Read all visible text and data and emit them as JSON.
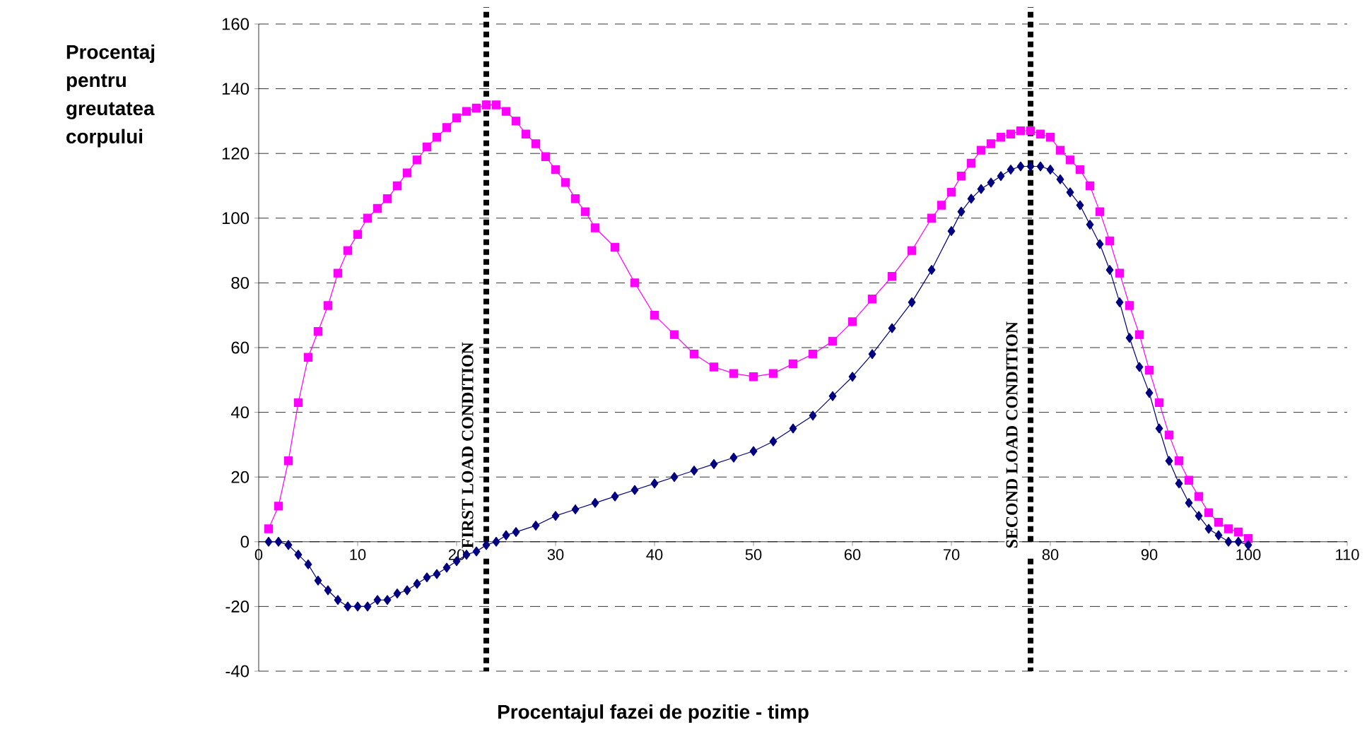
{
  "chart_data": {
    "type": "line",
    "xlabel": "Procentajul fazei de pozitie - timp",
    "ylabel": "Procentaj pentru greutatea corpului",
    "xlim": [
      0,
      110
    ],
    "xticks": [
      0,
      10,
      20,
      30,
      40,
      50,
      60,
      70,
      80,
      90,
      100,
      110
    ],
    "ylim": [
      -40,
      160
    ],
    "yticks": [
      -40,
      -20,
      0,
      20,
      40,
      60,
      80,
      100,
      120,
      140,
      160
    ],
    "grid": "y",
    "series": [
      {
        "color": "#ff00ff",
        "marker": "square",
        "x": [
          1,
          2,
          3,
          4,
          5,
          6,
          7,
          8,
          9,
          10,
          11,
          12,
          13,
          14,
          15,
          16,
          17,
          18,
          19,
          20,
          21,
          22,
          23,
          24,
          25,
          26,
          27,
          28,
          29,
          30,
          31,
          32,
          33,
          34,
          36,
          38,
          40,
          42,
          44,
          46,
          48,
          50,
          52,
          54,
          56,
          58,
          60,
          62,
          64,
          66,
          68,
          69,
          70,
          71,
          72,
          73,
          74,
          75,
          76,
          77,
          78,
          79,
          80,
          81,
          82,
          83,
          84,
          85,
          86,
          87,
          88,
          89,
          90,
          91,
          92,
          93,
          94,
          95,
          96,
          97,
          98,
          99,
          100
        ],
        "values": [
          4,
          11,
          25,
          43,
          57,
          65,
          73,
          83,
          90,
          95,
          100,
          103,
          106,
          110,
          114,
          118,
          122,
          125,
          128,
          131,
          133,
          134,
          135,
          135,
          133,
          130,
          126,
          123,
          119,
          115,
          111,
          106,
          102,
          97,
          91,
          80,
          70,
          64,
          58,
          54,
          52,
          51,
          52,
          55,
          58,
          62,
          68,
          75,
          82,
          90,
          100,
          104,
          108,
          113,
          117,
          121,
          123,
          125,
          126,
          127,
          127,
          126,
          125,
          121,
          118,
          115,
          110,
          102,
          93,
          83,
          73,
          64,
          53,
          43,
          33,
          25,
          19,
          14,
          9,
          6,
          4,
          3,
          1
        ]
      },
      {
        "color": "#000080",
        "marker": "diamond",
        "x": [
          1,
          2,
          3,
          4,
          5,
          6,
          7,
          8,
          9,
          10,
          11,
          12,
          13,
          14,
          15,
          16,
          17,
          18,
          19,
          20,
          21,
          22,
          23,
          24,
          25,
          26,
          28,
          30,
          32,
          34,
          36,
          38,
          40,
          42,
          44,
          46,
          48,
          50,
          52,
          54,
          56,
          58,
          60,
          62,
          64,
          66,
          68,
          70,
          71,
          72,
          73,
          74,
          75,
          76,
          77,
          78,
          79,
          80,
          81,
          82,
          83,
          84,
          85,
          86,
          87,
          88,
          89,
          90,
          91,
          92,
          93,
          94,
          95,
          96,
          97,
          98,
          99,
          100
        ],
        "values": [
          0,
          0,
          -1,
          -4,
          -7,
          -12,
          -15,
          -18,
          -20,
          -20,
          -20,
          -18,
          -18,
          -16,
          -15,
          -13,
          -11,
          -10,
          -8,
          -6,
          -4,
          -3,
          -1,
          0,
          2,
          3,
          5,
          8,
          10,
          12,
          14,
          16,
          18,
          20,
          22,
          24,
          26,
          28,
          31,
          35,
          39,
          45,
          51,
          58,
          66,
          74,
          84,
          96,
          102,
          106,
          109,
          111,
          113,
          115,
          116,
          116,
          116,
          115,
          112,
          108,
          104,
          98,
          92,
          84,
          74,
          63,
          54,
          46,
          35,
          25,
          18,
          12,
          8,
          4,
          2,
          0,
          0,
          -1
        ]
      }
    ],
    "ref_lines": [
      {
        "axis": "x",
        "value": 23,
        "label": "FIRST LOAD CONDITION",
        "color": "#000000",
        "line_style": "dotted"
      },
      {
        "axis": "x",
        "value": 78,
        "label": "SECOND LOAD CONDITION",
        "color": "#000000",
        "line_style": "dotted"
      }
    ]
  }
}
